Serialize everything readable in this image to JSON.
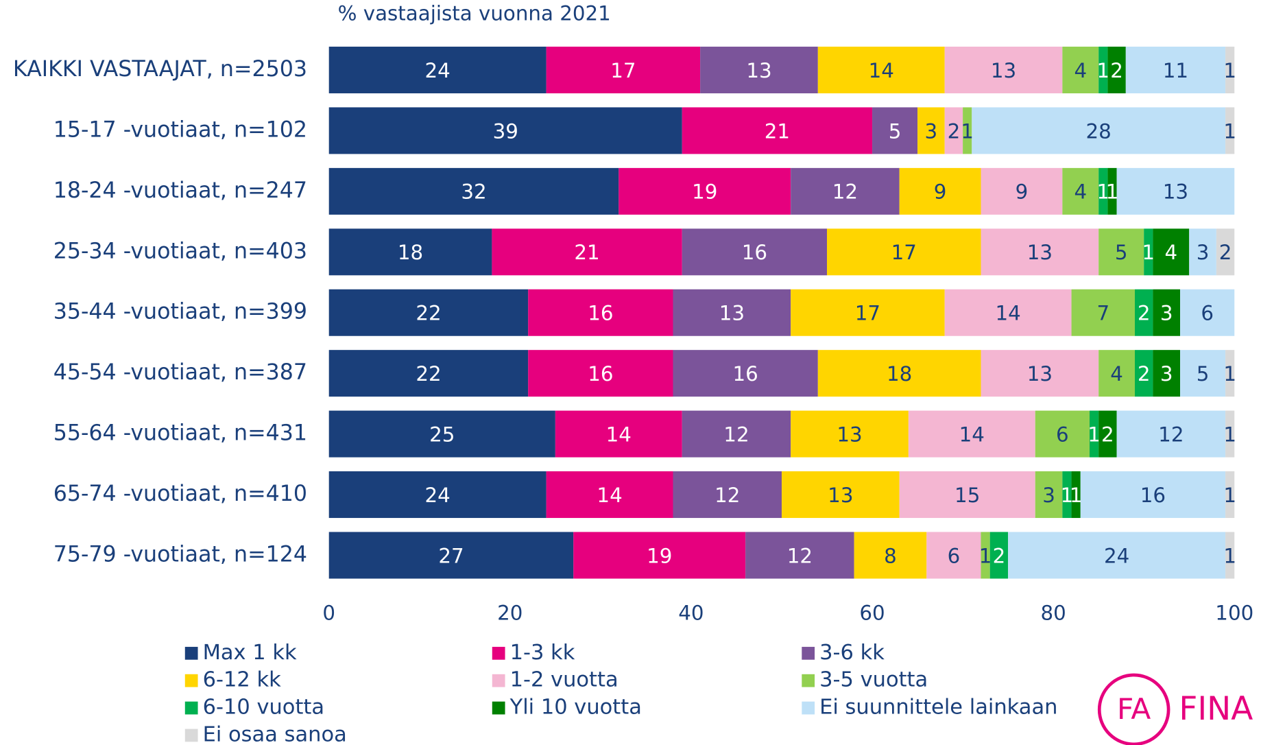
{
  "chart_data": {
    "type": "stacked_bar_horizontal",
    "subtitle": "% vastaajista vuonna 2021",
    "categories": [
      "KAIKKI VASTAAJAT, n=2503",
      "15-17 -vuotiaat, n=102",
      "18-24 -vuotiaat, n=247",
      "25-34 -vuotiaat, n=403",
      "35-44 -vuotiaat, n=399",
      "45-54 -vuotiaat, n=387",
      "55-64 -vuotiaat, n=431",
      "65-74 -vuotiaat, n=410",
      "75-79 -vuotiaat, n=124"
    ],
    "series": [
      {
        "name": "Max 1 kk",
        "color": "#1a3f7a",
        "values": [
          24,
          39,
          32,
          18,
          22,
          22,
          25,
          24,
          27
        ]
      },
      {
        "name": "1-3 kk",
        "color": "#e6007e",
        "values": [
          17,
          21,
          19,
          21,
          16,
          16,
          14,
          14,
          19
        ]
      },
      {
        "name": "3-6 kk",
        "color": "#7b549a",
        "values": [
          13,
          5,
          12,
          16,
          13,
          16,
          12,
          12,
          12
        ]
      },
      {
        "name": "6-12 kk",
        "color": "#ffd500",
        "values": [
          14,
          3,
          9,
          17,
          17,
          18,
          13,
          13,
          8
        ]
      },
      {
        "name": "1-2 vuotta",
        "color": "#f4b6d2",
        "values": [
          13,
          2,
          9,
          13,
          14,
          13,
          14,
          15,
          6
        ]
      },
      {
        "name": "3-5 vuotta",
        "color": "#92d050",
        "values": [
          4,
          1,
          4,
          5,
          7,
          4,
          6,
          3,
          1
        ]
      },
      {
        "name": "6-10 vuotta",
        "color": "#00b050",
        "values": [
          1,
          null,
          1,
          1,
          2,
          2,
          1,
          1,
          2
        ]
      },
      {
        "name": "Yli 10 vuotta",
        "color": "#008000",
        "values": [
          2,
          null,
          1,
          4,
          3,
          3,
          2,
          1,
          null
        ]
      },
      {
        "name": "Ei suunnittele lainkaan",
        "color": "#bee0f7",
        "values": [
          11,
          28,
          13,
          3,
          6,
          5,
          12,
          16,
          24
        ]
      },
      {
        "name": "Ei osaa sanoa",
        "color": "#d9d9d9",
        "values": [
          1,
          1,
          null,
          2,
          null,
          1,
          1,
          1,
          1
        ]
      }
    ],
    "xlim": [
      0,
      100
    ],
    "xticks": [
      0,
      20,
      40,
      60,
      80,
      100
    ],
    "grid": false,
    "logo_mark": "FA",
    "logo": "FINA"
  }
}
